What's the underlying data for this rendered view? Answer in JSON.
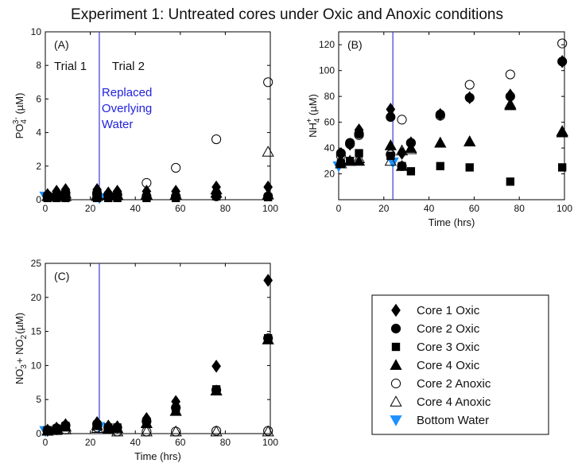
{
  "figure_title": "Experiment 1: Untreated cores under Oxic and Anoxic conditions",
  "legend": [
    {
      "label": "Core 1 Oxic",
      "marker": "diamond",
      "fill": "#000000",
      "stroke": "#000000"
    },
    {
      "label": "Core 2 Oxic",
      "marker": "circle",
      "fill": "#000000",
      "stroke": "#000000"
    },
    {
      "label": "Core 3 Oxic",
      "marker": "square",
      "fill": "#000000",
      "stroke": "#000000"
    },
    {
      "label": "Core 4 Oxic",
      "marker": "triangle-up",
      "fill": "#000000",
      "stroke": "#000000"
    },
    {
      "label": "Core 2 Anoxic",
      "marker": "circle",
      "fill": "none",
      "stroke": "#000000"
    },
    {
      "label": "Core 4 Anoxic",
      "marker": "triangle-up",
      "fill": "none",
      "stroke": "#000000"
    },
    {
      "label": "Bottom Water",
      "marker": "triangle-down",
      "fill": "#1e90ff",
      "stroke": "#1e90ff"
    }
  ],
  "colors": {
    "trial_line": "#3b3bd6",
    "annotation": "#2222dd",
    "bottom_water": "#1e90ff"
  },
  "chart_data": [
    {
      "type": "scatter",
      "panel_label": "(A)",
      "ylabel_main": "PO",
      "ylabel_sub": "4",
      "ylabel_sup": "3-",
      "ylabel_unit": " (µM)",
      "xlabel": "",
      "xlim": [
        0,
        100
      ],
      "ylim": [
        0,
        10
      ],
      "xticks": [
        0,
        20,
        40,
        60,
        80,
        100
      ],
      "yticks": [
        0,
        2,
        4,
        6,
        8,
        10
      ],
      "vline_x": 24,
      "trial_labels": [
        "Trial 1",
        "Trial 2"
      ],
      "annotation_lines": [
        "Replaced",
        "Overlying",
        "Water"
      ],
      "series": [
        {
          "name": "Core 1 Oxic",
          "x": [
            1,
            5,
            9,
            23,
            28,
            32,
            45,
            58,
            76,
            99
          ],
          "y": [
            0.3,
            0.5,
            0.6,
            0.6,
            0.4,
            0.5,
            0.5,
            0.5,
            0.75,
            0.75
          ]
        },
        {
          "name": "Core 2 Oxic",
          "x": [
            1,
            5,
            9,
            23,
            28,
            32,
            45,
            58,
            76,
            99
          ],
          "y": [
            0.25,
            0.3,
            0.4,
            0.4,
            0.3,
            0.3,
            0.2,
            0.2,
            0.2,
            0.2
          ]
        },
        {
          "name": "Core 3 Oxic",
          "x": [
            1,
            5,
            9,
            23,
            28,
            32,
            45,
            58,
            76,
            99
          ],
          "y": [
            0.1,
            0.1,
            0.1,
            0.1,
            0.1,
            0.1,
            0.1,
            0.1,
            0.2,
            0.15
          ]
        },
        {
          "name": "Core 4 Oxic",
          "x": [
            1,
            5,
            9,
            23,
            28,
            32,
            45,
            58,
            76,
            99
          ],
          "y": [
            0.2,
            0.3,
            0.35,
            0.3,
            0.3,
            0.25,
            0.3,
            0.3,
            0.6,
            0.3
          ]
        },
        {
          "name": "Core 2 Anoxic",
          "x": [
            1,
            5,
            9,
            23,
            28,
            32,
            45,
            58,
            76,
            99
          ],
          "y": [
            0.2,
            0.2,
            0.2,
            0.3,
            0.3,
            0.3,
            1.0,
            1.9,
            3.6,
            7.0
          ]
        },
        {
          "name": "Core 4 Anoxic",
          "x": [
            1,
            5,
            9,
            23,
            28,
            32,
            45,
            58,
            76,
            99
          ],
          "y": [
            0.2,
            0.2,
            0.2,
            0.2,
            0.25,
            0.3,
            0.3,
            0.3,
            0.4,
            2.85
          ]
        },
        {
          "name": "Bottom Water",
          "x": [
            0,
            24
          ],
          "y": [
            0.2,
            0.1
          ]
        }
      ]
    },
    {
      "type": "scatter",
      "panel_label": "(B)",
      "ylabel_main": "NH",
      "ylabel_sub": "4",
      "ylabel_sup": "+",
      "ylabel_unit": " (µM)",
      "xlabel": "Time (hrs)",
      "xlim": [
        0,
        100
      ],
      "ylim": [
        0,
        130
      ],
      "xticks": [
        0,
        20,
        40,
        60,
        80,
        100
      ],
      "yticks": [
        20,
        40,
        60,
        80,
        100,
        120
      ],
      "vline_x": 24,
      "series": [
        {
          "name": "Core 1 Oxic",
          "x": [
            1,
            5,
            9,
            23,
            28,
            32,
            45,
            58,
            76,
            99
          ],
          "y": [
            35,
            43,
            54,
            70,
            36,
            44,
            66,
            79,
            81,
            107
          ]
        },
        {
          "name": "Core 2 Oxic",
          "x": [
            1,
            5,
            9,
            23,
            28,
            32,
            45,
            58,
            76,
            99
          ],
          "y": [
            36,
            44,
            51,
            64,
            26,
            44,
            66,
            79,
            80,
            107
          ]
        },
        {
          "name": "Core 3 Oxic",
          "x": [
            1,
            5,
            9,
            23,
            28,
            32,
            45,
            58,
            76,
            99
          ],
          "y": [
            28,
            30,
            36,
            34,
            26,
            22,
            26,
            25,
            14,
            25
          ]
        },
        {
          "name": "Core 4 Oxic",
          "x": [
            1,
            5,
            9,
            23,
            28,
            32,
            45,
            58,
            76,
            99
          ],
          "y": [
            30,
            30,
            30,
            42,
            26,
            40,
            44,
            45,
            73,
            52
          ]
        },
        {
          "name": "Core 2 Anoxic",
          "x": [
            1,
            5,
            9,
            23,
            28,
            32,
            45,
            58,
            76,
            99
          ],
          "y": [
            34,
            43,
            50,
            35,
            62,
            44,
            65,
            89,
            97,
            121
          ]
        },
        {
          "name": "Core 4 Anoxic",
          "x": [
            1,
            5,
            9,
            23,
            28,
            32,
            45,
            58,
            76,
            99
          ],
          "y": [
            28,
            30,
            32,
            30,
            38,
            39,
            44,
            45,
            74,
            53
          ]
        },
        {
          "name": "Bottom Water",
          "x": [
            0,
            24
          ],
          "y": [
            26,
            29
          ]
        }
      ]
    },
    {
      "type": "scatter",
      "panel_label": "(C)",
      "ylabel_main": "NO",
      "ylabel_sub": "3",
      "ylabel_sup": "-",
      "ylabel_mid": " + NO",
      "ylabel_sub2": "2",
      "ylabel_sup2": "-",
      "ylabel_unit": " (µM)",
      "xlabel": "Time (hrs)",
      "xlim": [
        0,
        100
      ],
      "ylim": [
        0,
        25
      ],
      "xticks": [
        0,
        20,
        40,
        60,
        80,
        100
      ],
      "yticks": [
        0,
        5,
        10,
        15,
        20,
        25
      ],
      "vline_x": 24,
      "series": [
        {
          "name": "Core 1 Oxic",
          "x": [
            1,
            5,
            9,
            23,
            28,
            32,
            45,
            58,
            76,
            99
          ],
          "y": [
            0.5,
            0.8,
            1.3,
            1.6,
            1.1,
            1.0,
            2.2,
            4.7,
            9.9,
            22.5
          ]
        },
        {
          "name": "Core 2 Oxic",
          "x": [
            1,
            5,
            9,
            23,
            28,
            32,
            45,
            58,
            76,
            99
          ],
          "y": [
            0.5,
            0.8,
            1.2,
            1.4,
            0.9,
            0.9,
            1.8,
            3.8,
            6.4,
            14.0
          ]
        },
        {
          "name": "Core 3 Oxic",
          "x": [
            1,
            5,
            9,
            23,
            28,
            32,
            45,
            58,
            76,
            99
          ],
          "y": [
            0.5,
            0.7,
            1.1,
            1.3,
            0.9,
            0.9,
            1.6,
            3.5,
            6.5,
            14.0
          ]
        },
        {
          "name": "Core 4 Oxic",
          "x": [
            1,
            5,
            9,
            23,
            28,
            32,
            45,
            58,
            76,
            99
          ],
          "y": [
            0.4,
            0.6,
            1.0,
            1.2,
            0.8,
            0.8,
            1.5,
            3.3,
            6.3,
            13.8
          ]
        },
        {
          "name": "Core 2 Anoxic",
          "x": [
            1,
            5,
            9,
            23,
            28,
            32,
            45,
            58,
            76,
            99
          ],
          "y": [
            0.4,
            0.5,
            0.6,
            0.9,
            0.8,
            0.3,
            0.3,
            0.3,
            0.4,
            0.4
          ]
        },
        {
          "name": "Core 4 Anoxic",
          "x": [
            1,
            5,
            9,
            23,
            28,
            32,
            45,
            58,
            76,
            99
          ],
          "y": [
            0.4,
            0.5,
            0.6,
            0.8,
            0.7,
            0.3,
            0.3,
            0.3,
            0.3,
            0.3
          ]
        },
        {
          "name": "Bottom Water",
          "x": [
            0,
            24
          ],
          "y": [
            0.4,
            1.0
          ]
        }
      ]
    }
  ]
}
